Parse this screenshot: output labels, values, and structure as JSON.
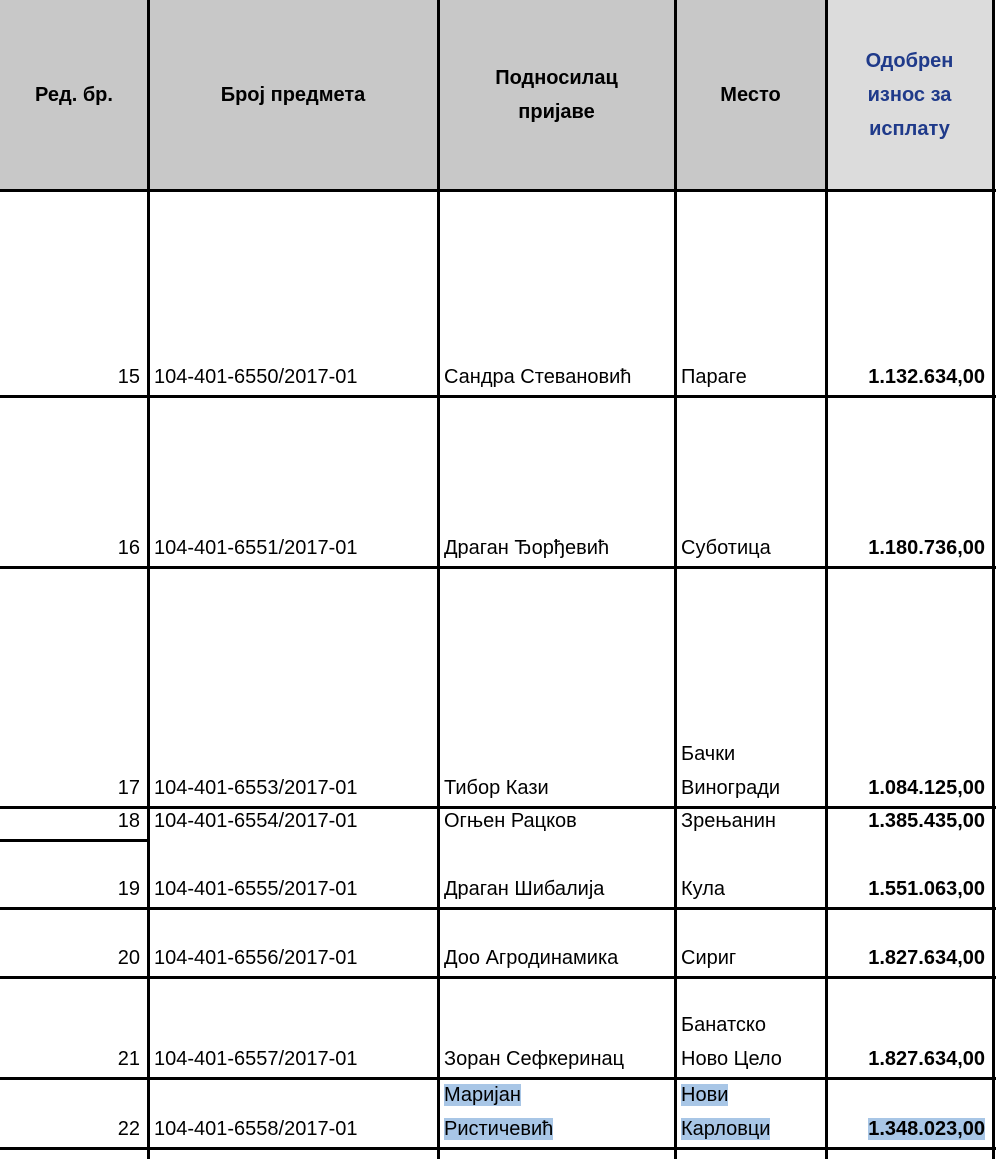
{
  "table": {
    "header": [
      "Ред. бр.",
      "Број предмета",
      [
        "Подносилац",
        "пријаве"
      ],
      "Место",
      [
        "Одобрен",
        "износ за",
        "исплату"
      ]
    ],
    "rows": [
      [
        "15",
        "104-401-6550/2017-01",
        [
          "Сандра Стевановић"
        ],
        [
          "Параге"
        ],
        "1.132.634,00"
      ],
      [
        "16",
        "104-401-6551/2017-01",
        [
          "Драган Ђорђевић"
        ],
        [
          "Суботица"
        ],
        "1.180.736,00"
      ],
      [
        "17",
        "104-401-6553/2017-01",
        [
          "Тибор Кази"
        ],
        [
          "Бачки",
          "Виногради"
        ],
        "1.084.125,00"
      ],
      [
        "18",
        "104-401-6554/2017-01",
        [
          "Огњен Рацков"
        ],
        [
          "Зрењанин"
        ],
        "1.385.435,00"
      ],
      [
        "19",
        "104-401-6555/2017-01",
        [
          "Драган Шибалија"
        ],
        [
          "Кула"
        ],
        "1.551.063,00"
      ],
      [
        "20",
        "104-401-6556/2017-01",
        [
          "Доо Агродинамика"
        ],
        [
          "Сириг"
        ],
        "1.827.634,00"
      ],
      [
        "21",
        "104-401-6557/2017-01",
        [
          "Зоран Сефкеринац"
        ],
        [
          "Банатско",
          "Ново Цело"
        ],
        "1.827.634,00"
      ],
      [
        "22",
        "104-401-6558/2017-01",
        [
          "Маријан",
          "Ристичевић"
        ],
        [
          "Нови",
          "Карловци"
        ],
        "1.348.023,00"
      ]
    ]
  }
}
